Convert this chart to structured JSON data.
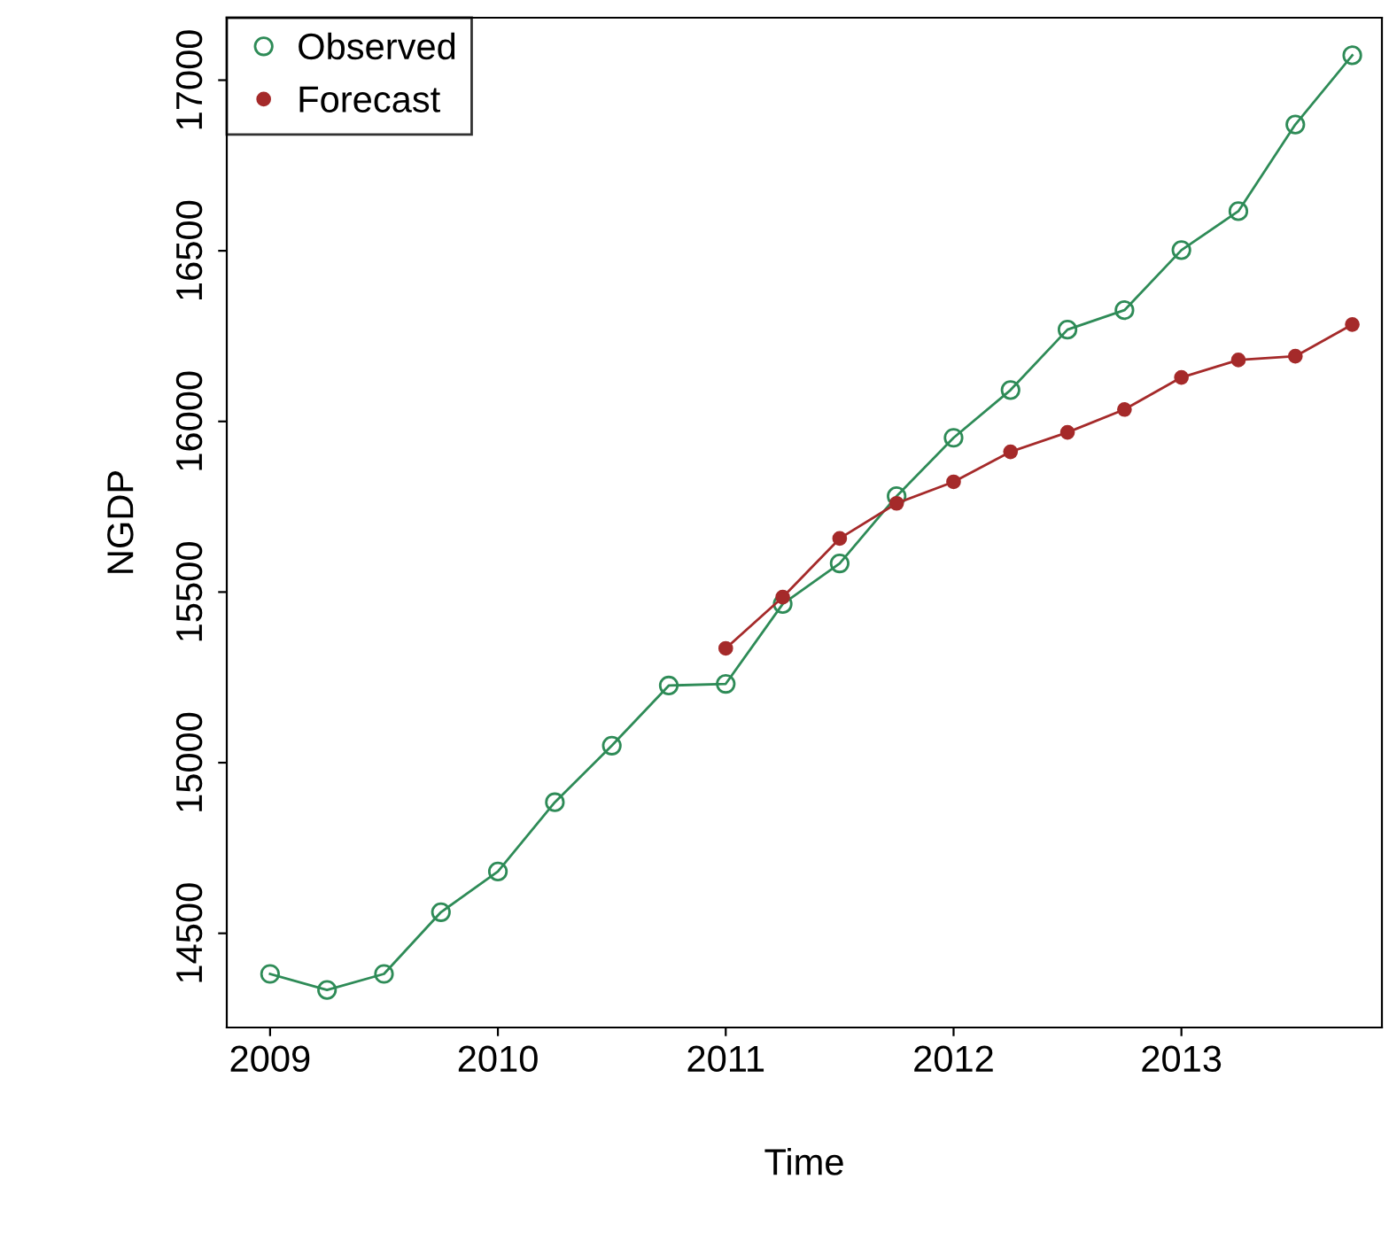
{
  "chart_data": {
    "type": "line",
    "xlabel": "Time",
    "ylabel": "NGDP",
    "xlim": [
      2008.81,
      2013.88
    ],
    "xticks": [
      2009,
      2010,
      2011,
      2012,
      2013
    ],
    "ylim": [
      14224,
      17183
    ],
    "yticks": [
      14500,
      15000,
      15500,
      16000,
      16500,
      17000
    ],
    "grid": false,
    "legend": "top left",
    "marker": "circle",
    "line_style": "solid",
    "series": [
      {
        "name": "Observed",
        "color": "#2e8b57",
        "x": [
          2009,
          2009.25,
          2009.5,
          2009.75,
          2010,
          2010.25,
          2010.5,
          2010.75,
          2011,
          2011.25,
          2011.5,
          2011.75,
          2012,
          2012.25,
          2012.5,
          2012.75,
          2013,
          2013.25,
          2013.5,
          2013.75
        ],
        "values": [
          14381,
          14334,
          14381,
          14562,
          14681,
          14884,
          15050,
          15226,
          15231,
          15465,
          15584,
          15781,
          15952,
          16092,
          16269,
          16326,
          16502,
          16616,
          16870,
          17073
        ]
      },
      {
        "name": "Forecast",
        "color": "#a52a2a",
        "x": [
          2011,
          2011.25,
          2011.5,
          2011.75,
          2012,
          2012.25,
          2012.5,
          2012.75,
          2013,
          2013.25,
          2013.5,
          2013.75
        ],
        "values": [
          15335,
          15485,
          15657,
          15760,
          15823,
          15911,
          15968,
          16035,
          16129,
          16180,
          16191,
          16284
        ]
      }
    ]
  }
}
